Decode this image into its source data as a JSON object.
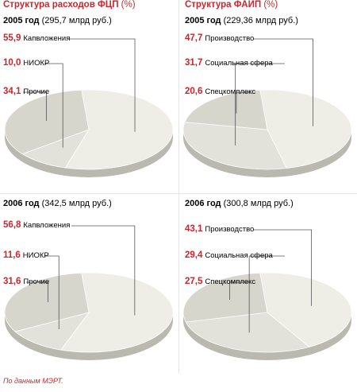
{
  "header": {
    "left_title": "Структура расходов ФЦП",
    "right_title": "Структура ФАИП",
    "unit": "(%)"
  },
  "source": "По данным МЭРТ.",
  "colors": {
    "accent": "#d2232a",
    "slice_light": "#eeeee7",
    "slice_mid": "#e2e2da",
    "slice_dark": "#d6d6cd",
    "rim": "#b9b9b0",
    "line": "#555555"
  },
  "panels": [
    {
      "year": "2005 год",
      "total": "(295,7 млрд руб.)"
    },
    {
      "year": "2005 год",
      "total": "(229,36 млрд руб.)"
    },
    {
      "year": "2006 год",
      "total": "(342,5 млрд руб.)"
    },
    {
      "year": "2006 год",
      "total": "(300,8 млрд руб.)"
    }
  ],
  "chart_data": [
    {
      "type": "pie",
      "title": "2005 год",
      "subtitle": "(295,7 млрд руб.)",
      "labels": [
        "Капвложения",
        "НИОКР",
        "Прочие"
      ],
      "value_labels": [
        "55,9",
        "10,0",
        "34,1"
      ],
      "values": [
        55.9,
        10.0,
        34.1
      ]
    },
    {
      "type": "pie",
      "title": "2005 год",
      "subtitle": "(229,36 млрд руб.)",
      "labels": [
        "Производство",
        "Социальная сфера",
        "Спецкомплекс"
      ],
      "value_labels": [
        "47,7",
        "31,7",
        "20,6"
      ],
      "values": [
        47.7,
        31.7,
        20.6
      ]
    },
    {
      "type": "pie",
      "title": "2006 год",
      "subtitle": "(342,5 млрд руб.)",
      "labels": [
        "Капвложения",
        "НИОКР",
        "Прочие"
      ],
      "value_labels": [
        "56,8",
        "11,6",
        "31,6"
      ],
      "values": [
        56.8,
        11.6,
        31.6
      ]
    },
    {
      "type": "pie",
      "title": "2006 год",
      "subtitle": "(300,8 млрд руб.)",
      "labels": [
        "Производство",
        "Социальная сфера",
        "Спецкомплекс"
      ],
      "value_labels": [
        "43,1",
        "29,4",
        "27,5"
      ],
      "values": [
        43.1,
        29.4,
        27.5
      ]
    }
  ]
}
